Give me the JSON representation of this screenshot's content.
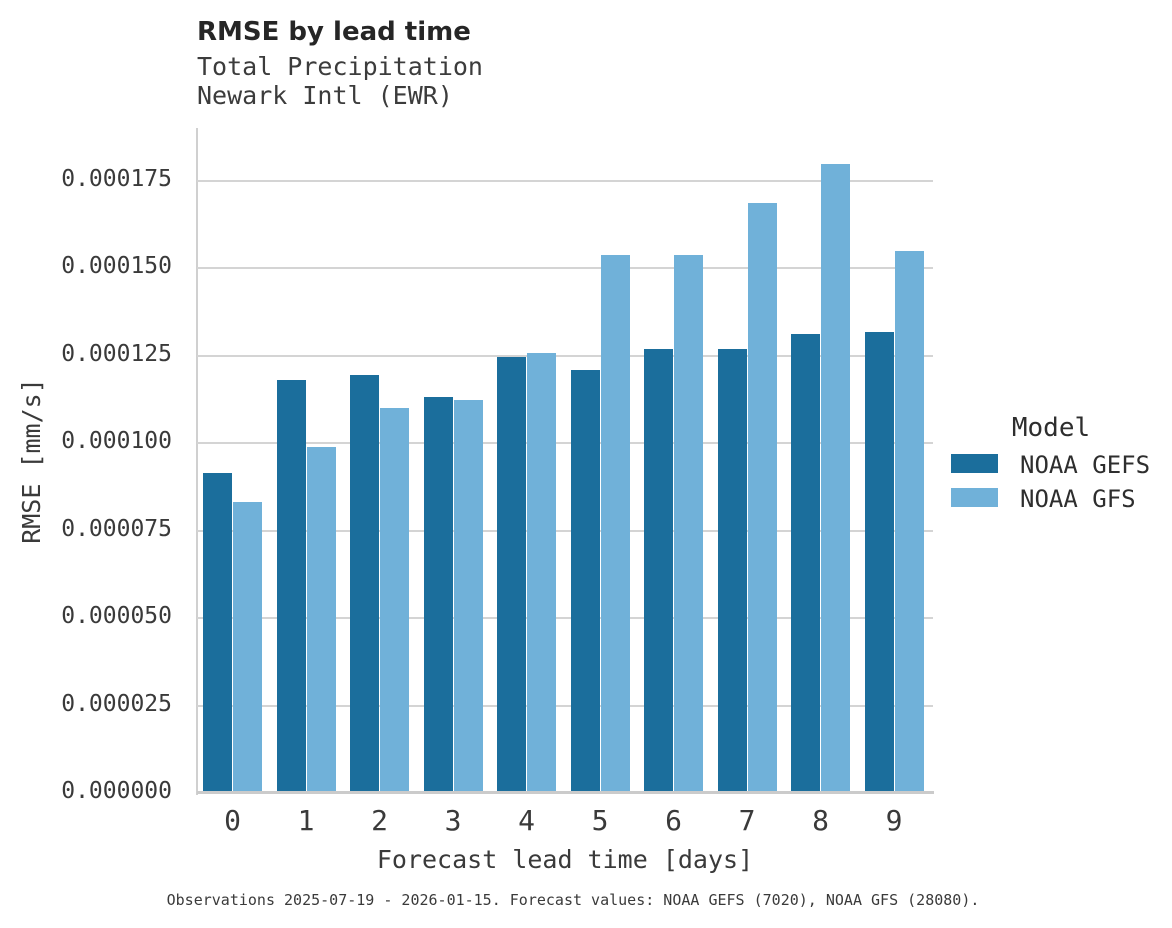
{
  "header": {
    "title": "RMSE by lead time",
    "subtitle_line1": "Total Precipitation",
    "subtitle_line2": "Newark Intl (EWR)"
  },
  "chart_data": {
    "type": "bar",
    "title": "RMSE by lead time",
    "subtitle": [
      "Total Precipitation",
      "Newark Intl (EWR)"
    ],
    "xlabel": "Forecast lead time [days]",
    "ylabel": "RMSE [mm/s]",
    "categories": [
      "0",
      "1",
      "2",
      "3",
      "4",
      "5",
      "6",
      "7",
      "8",
      "9"
    ],
    "series": [
      {
        "name": "NOAA GEFS",
        "color": "#1b6e9c",
        "values": [
          9.15e-05,
          0.000118,
          0.0001195,
          0.000113,
          0.0001246,
          0.0001209,
          0.0001268,
          0.0001268,
          0.0001311,
          0.0001317
        ]
      },
      {
        "name": "NOAA GFS",
        "color": "#70b1d9",
        "values": [
          8.3e-05,
          9.9e-05,
          0.00011,
          0.0001123,
          0.0001257,
          0.0001537,
          0.0001537,
          0.0001687,
          0.0001796,
          0.0001548
        ]
      }
    ],
    "ylim": [
      0,
      0.00019
    ],
    "yticks": [
      0,
      2.5e-05,
      5e-05,
      7.5e-05,
      0.0001,
      0.000125,
      0.00015,
      0.000175
    ],
    "ytick_labels": [
      "0.000000",
      "0.000025",
      "0.000050",
      "0.000075",
      "0.000100",
      "0.000125",
      "0.000150",
      "0.000175"
    ],
    "grid": true,
    "legend_title": "Model",
    "legend_position": "right",
    "legend_entries": [
      "NOAA GEFS",
      "NOAA GFS"
    ]
  },
  "footer": {
    "caption": "Observations 2025-07-19 - 2026-01-15. Forecast values: NOAA GEFS (7020), NOAA GFS (28080)."
  }
}
